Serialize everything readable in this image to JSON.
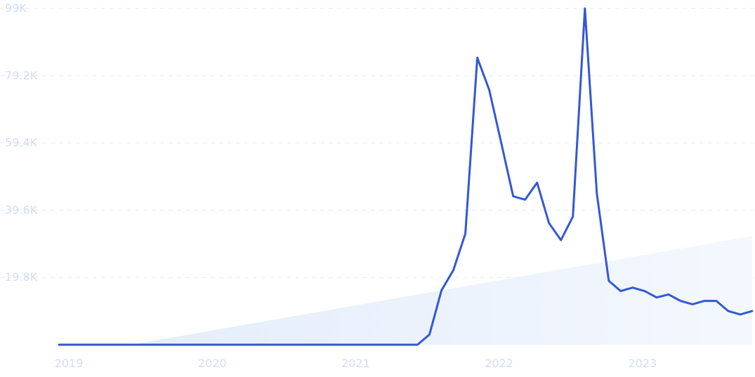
{
  "chart_data": {
    "type": "line",
    "title": "",
    "xlabel": "",
    "ylabel": "",
    "ylim": [
      0,
      99000
    ],
    "yticks": [
      {
        "value": 19800,
        "label": "19.8K"
      },
      {
        "value": 39600,
        "label": "39.6K"
      },
      {
        "value": 59400,
        "label": "59.4K"
      },
      {
        "value": 79200,
        "label": "79.2K"
      },
      {
        "value": 99000,
        "label": "99K"
      }
    ],
    "xticks": [
      {
        "value": "2019-01",
        "label": "2019"
      },
      {
        "value": "2020-01",
        "label": "2020"
      },
      {
        "value": "2021-01",
        "label": "2021"
      },
      {
        "value": "2022-01",
        "label": "2022"
      },
      {
        "value": "2023-01",
        "label": "2023"
      }
    ],
    "grid": true,
    "series": [
      {
        "color": "#3358d4",
        "trend_fill": "#e6effc",
        "points": [
          {
            "x": "2018-12",
            "y": 0
          },
          {
            "x": "2019-06",
            "y": 0
          },
          {
            "x": "2020-06",
            "y": 0
          },
          {
            "x": "2021-06",
            "y": 0
          },
          {
            "x": "2021-07",
            "y": 3000
          },
          {
            "x": "2021-08",
            "y": 16000
          },
          {
            "x": "2021-09",
            "y": 22000
          },
          {
            "x": "2021-10",
            "y": 32700
          },
          {
            "x": "2021-11",
            "y": 84500
          },
          {
            "x": "2021-12",
            "y": 75000
          },
          {
            "x": "2022-01",
            "y": 59500
          },
          {
            "x": "2022-02",
            "y": 43700
          },
          {
            "x": "2022-03",
            "y": 42700
          },
          {
            "x": "2022-04",
            "y": 47700
          },
          {
            "x": "2022-05",
            "y": 35800
          },
          {
            "x": "2022-06",
            "y": 30800
          },
          {
            "x": "2022-07",
            "y": 37700
          },
          {
            "x": "2022-08",
            "y": 99000
          },
          {
            "x": "2022-09",
            "y": 44500
          },
          {
            "x": "2022-10",
            "y": 18800
          },
          {
            "x": "2022-11",
            "y": 15800
          },
          {
            "x": "2022-12",
            "y": 16800
          },
          {
            "x": "2023-01",
            "y": 15800
          },
          {
            "x": "2023-02",
            "y": 13900
          },
          {
            "x": "2023-03",
            "y": 14800
          },
          {
            "x": "2023-04",
            "y": 12900
          },
          {
            "x": "2023-05",
            "y": 11900
          },
          {
            "x": "2023-06",
            "y": 12900
          },
          {
            "x": "2023-07",
            "y": 12900
          },
          {
            "x": "2023-08",
            "y": 9900
          },
          {
            "x": "2023-09",
            "y": 8900
          },
          {
            "x": "2023-10",
            "y": 9900
          }
        ],
        "trend": [
          {
            "x": "2019-06",
            "y": 0
          },
          {
            "x": "2023-10",
            "y": 32000
          }
        ]
      }
    ]
  }
}
